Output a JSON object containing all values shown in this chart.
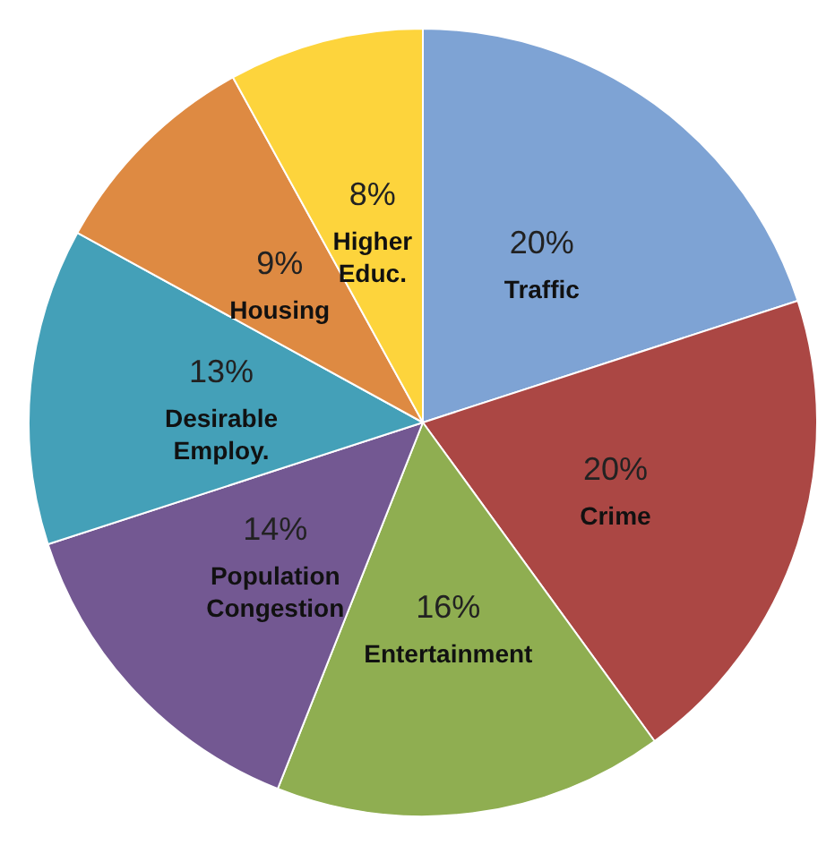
{
  "chart_data": {
    "type": "pie",
    "categories": [
      "Traffic",
      "Crime",
      "Entertainment",
      "Population Congestion",
      "Desirable Employ.",
      "Housing",
      "Higher Educ."
    ],
    "values": [
      20,
      20,
      16,
      14,
      13,
      9,
      8
    ],
    "value_labels": [
      "20%",
      "20%",
      "16%",
      "14%",
      "13%",
      "9%",
      "8%"
    ],
    "colors": [
      "#7ea3d4",
      "#ab4744",
      "#8fae51",
      "#735892",
      "#44a0b8",
      "#de8a42",
      "#fdd43c"
    ],
    "legend": false
  }
}
